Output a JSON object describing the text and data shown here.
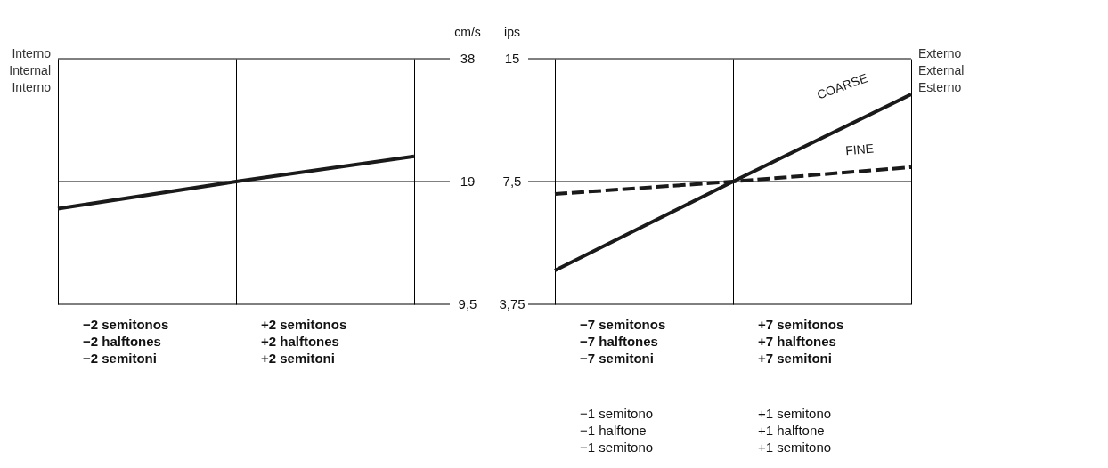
{
  "chart_data": [
    {
      "type": "line",
      "ylabel": "cm/s",
      "categories": [
        null,
        null,
        null
      ],
      "log": true,
      "ylim": [
        9.5,
        38
      ],
      "yticks": [
        {
          "value": 9.5,
          "label": "9,5"
        },
        19,
        38
      ],
      "grid": true,
      "tick_labels": "y",
      "line_style": "solid",
      "marker": "none",
      "series": [
        {
          "color": "#1a1a1a",
          "values": [
            16.3,
            19,
            21.9
          ]
        }
      ],
      "annotations": [
        "Interno\nInternal\nInterno",
        "−2 semitonos\n−2 halftones\n−2 semitoni",
        "+2 semitonos\n+2 halftones\n+2 semitoni"
      ]
    },
    {
      "type": "line",
      "ylabel": "ips",
      "categories": [
        null,
        null,
        null
      ],
      "log": true,
      "ylim": [
        3.75,
        15
      ],
      "yticks": [
        {
          "value": 3.75,
          "label": "3,75"
        },
        {
          "value": 7.5,
          "label": "7,5"
        },
        15
      ],
      "grid": true,
      "tick_labels": "y",
      "line_style": "solid",
      "marker": "none",
      "series": [
        {
          "name": "COARSE",
          "color": "#1a1a1a",
          "values": [
            4.54,
            7.5,
            12.27
          ]
        },
        {
          "name": "FINE",
          "color": "#1a1a1a",
          "line_style": "dashed",
          "values": [
            6.99,
            7.5,
            8.13
          ]
        }
      ],
      "annotations": [
        "Externo\nExternal\nEsterno",
        "−7 semitonos\n−7 halftones\n−7 semitoni",
        "+7 semitonos\n+7 halftones\n+7 semitoni",
        "−1 semitono\n−1 halftone\n−1 semitono",
        "+1 semitono\n+1 halftone\n+1 semitono"
      ]
    }
  ]
}
